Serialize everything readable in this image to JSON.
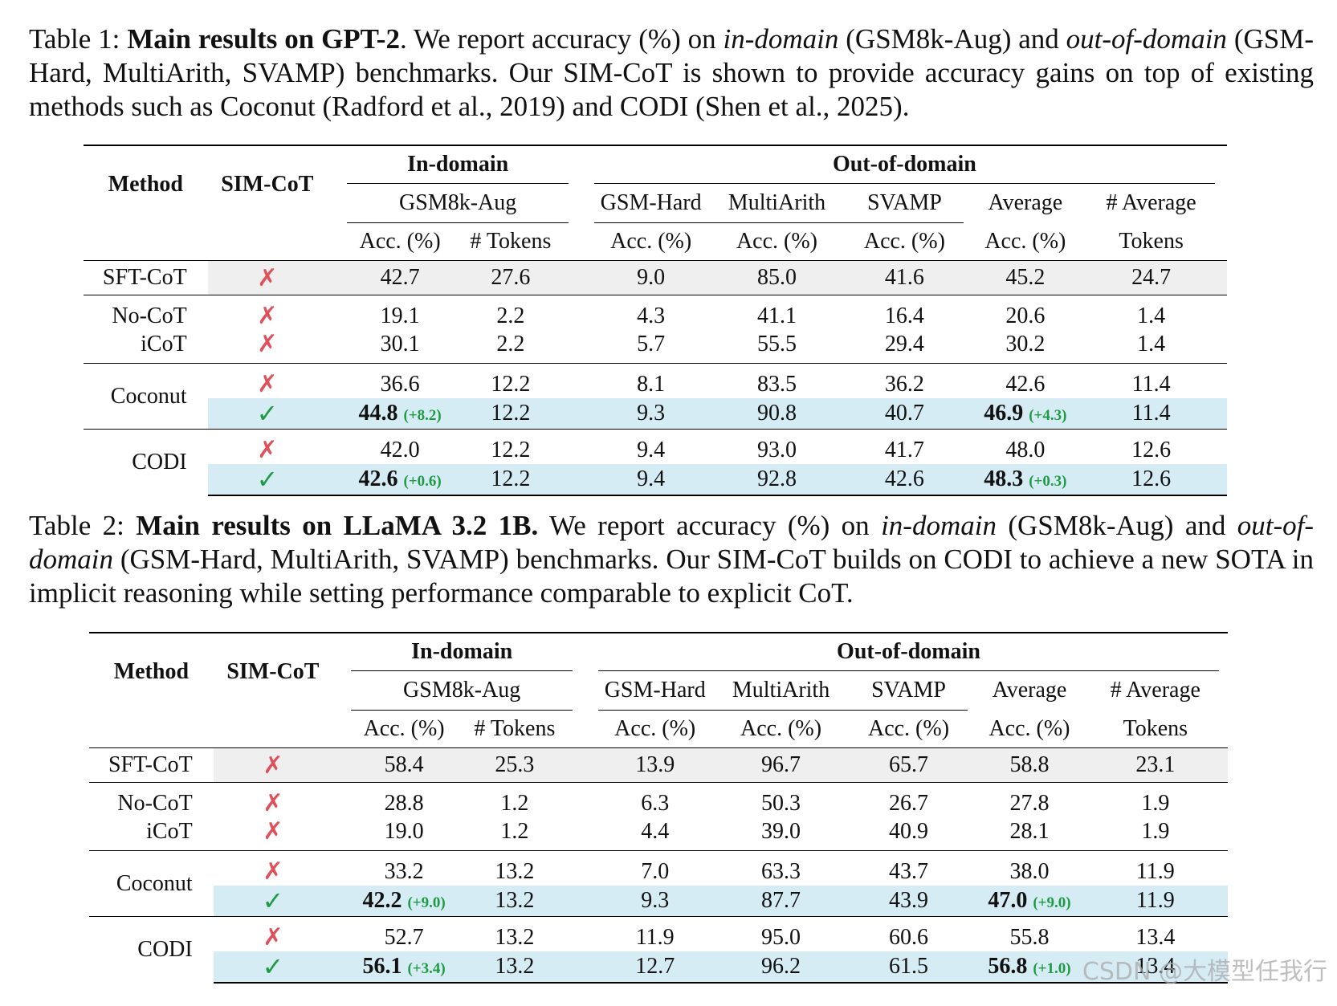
{
  "table1": {
    "caption": {
      "label": "Table 1: ",
      "title": "Main results on GPT-2",
      "p1": ". We report accuracy (%) on ",
      "in_domain": "in-domain",
      "p2": " (GSM8k-Aug) and ",
      "out_domain": "out-of-domain",
      "p3": " (GSM-Hard, MultiArith, SVAMP) benchmarks. Our SIM-CoT is shown to provide accuracy gains on top of existing methods such as Coconut (Radford et al., 2019) and CODI (Shen et al., 2025)."
    },
    "rows": {
      "sft": {
        "method": "SFT-CoT",
        "sim": "✗",
        "gsm_acc": "42.7",
        "gsm_tok": "27.6",
        "hard": "9.0",
        "multi": "85.0",
        "svamp": "41.6",
        "avg": "45.2",
        "avg_tok": "24.7"
      },
      "nocot": {
        "method": "No-CoT",
        "sim": "✗",
        "gsm_acc": "19.1",
        "gsm_tok": "2.2",
        "hard": "4.3",
        "multi": "41.1",
        "svamp": "16.4",
        "avg": "20.6",
        "avg_tok": "1.4"
      },
      "icot": {
        "method": "iCoT",
        "sim": "✗",
        "gsm_acc": "30.1",
        "gsm_tok": "2.2",
        "hard": "5.7",
        "multi": "55.5",
        "svamp": "29.4",
        "avg": "30.2",
        "avg_tok": "1.4"
      },
      "coconut": {
        "method": "Coconut",
        "sim": "✗",
        "gsm_acc": "36.6",
        "gsm_tok": "12.2",
        "hard": "8.1",
        "multi": "83.5",
        "svamp": "36.2",
        "avg": "42.6",
        "avg_tok": "11.4"
      },
      "coconut_sim": {
        "sim": "✓",
        "gsm_acc": "44.8",
        "gsm_delta": "(+8.2)",
        "gsm_tok": "12.2",
        "hard": "9.3",
        "multi": "90.8",
        "svamp": "40.7",
        "avg": "46.9",
        "avg_delta": "(+4.3)",
        "avg_tok": "11.4"
      },
      "codi": {
        "method": "CODI",
        "sim": "✗",
        "gsm_acc": "42.0",
        "gsm_tok": "12.2",
        "hard": "9.4",
        "multi": "93.0",
        "svamp": "41.7",
        "avg": "48.0",
        "avg_tok": "12.6"
      },
      "codi_sim": {
        "sim": "✓",
        "gsm_acc": "42.6",
        "gsm_delta": "(+0.6)",
        "gsm_tok": "12.2",
        "hard": "9.4",
        "multi": "92.8",
        "svamp": "42.6",
        "avg": "48.3",
        "avg_delta": "(+0.3)",
        "avg_tok": "12.6"
      }
    }
  },
  "table2": {
    "caption": {
      "label": "Table 2: ",
      "title": "Main results on LLaMA 3.2 1B.",
      "p1": " We report accuracy (%) on ",
      "in_domain": "in-domain",
      "p2": " (GSM8k-Aug) and ",
      "out_domain": "out-of-domain",
      "p3": " (GSM-Hard, MultiArith, SVAMP) benchmarks. Our SIM-CoT builds on CODI to achieve a new SOTA in implicit reasoning while setting performance comparable to explicit CoT."
    },
    "rows": {
      "sft": {
        "method": "SFT-CoT",
        "sim": "✗",
        "gsm_acc": "58.4",
        "gsm_tok": "25.3",
        "hard": "13.9",
        "multi": "96.7",
        "svamp": "65.7",
        "avg": "58.8",
        "avg_tok": "23.1"
      },
      "nocot": {
        "method": "No-CoT",
        "sim": "✗",
        "gsm_acc": "28.8",
        "gsm_tok": "1.2",
        "hard": "6.3",
        "multi": "50.3",
        "svamp": "26.7",
        "avg": "27.8",
        "avg_tok": "1.9"
      },
      "icot": {
        "method": "iCoT",
        "sim": "✗",
        "gsm_acc": "19.0",
        "gsm_tok": "1.2",
        "hard": "4.4",
        "multi": "39.0",
        "svamp": "40.9",
        "avg": "28.1",
        "avg_tok": "1.9"
      },
      "coconut": {
        "method": "Coconut",
        "sim": "✗",
        "gsm_acc": "33.2",
        "gsm_tok": "13.2",
        "hard": "7.0",
        "multi": "63.3",
        "svamp": "43.7",
        "avg": "38.0",
        "avg_tok": "11.9"
      },
      "coconut_sim": {
        "sim": "✓",
        "gsm_acc": "42.2",
        "gsm_delta": "(+9.0)",
        "gsm_tok": "13.2",
        "hard": "9.3",
        "multi": "87.7",
        "svamp": "43.9",
        "avg": "47.0",
        "avg_delta": "(+9.0)",
        "avg_tok": "11.9"
      },
      "codi": {
        "method": "CODI",
        "sim": "✗",
        "gsm_acc": "52.7",
        "gsm_tok": "13.2",
        "hard": "11.9",
        "multi": "95.0",
        "svamp": "60.6",
        "avg": "55.8",
        "avg_tok": "13.4"
      },
      "codi_sim": {
        "sim": "✓",
        "gsm_acc": "56.1",
        "gsm_delta": "(+3.4)",
        "gsm_tok": "13.2",
        "hard": "12.7",
        "multi": "96.2",
        "svamp": "61.5",
        "avg": "56.8",
        "avg_delta": "(+1.0)",
        "avg_tok": "13.4"
      }
    }
  },
  "headers": {
    "method": "Method",
    "sim": "SIM-CoT",
    "in_domain": "In-domain",
    "out_domain": "Out-of-domain",
    "gsm8k": "GSM8k-Aug",
    "gsm_hard": "GSM-Hard",
    "multiarith": "MultiArith",
    "svamp": "SVAMP",
    "average": "Average",
    "avg_tokens_1": "# Average",
    "acc": "Acc. (%)",
    "tokens": "# Tokens",
    "avg_tokens_2": "Tokens"
  },
  "watermark": "CSDN @大模型任我行"
}
